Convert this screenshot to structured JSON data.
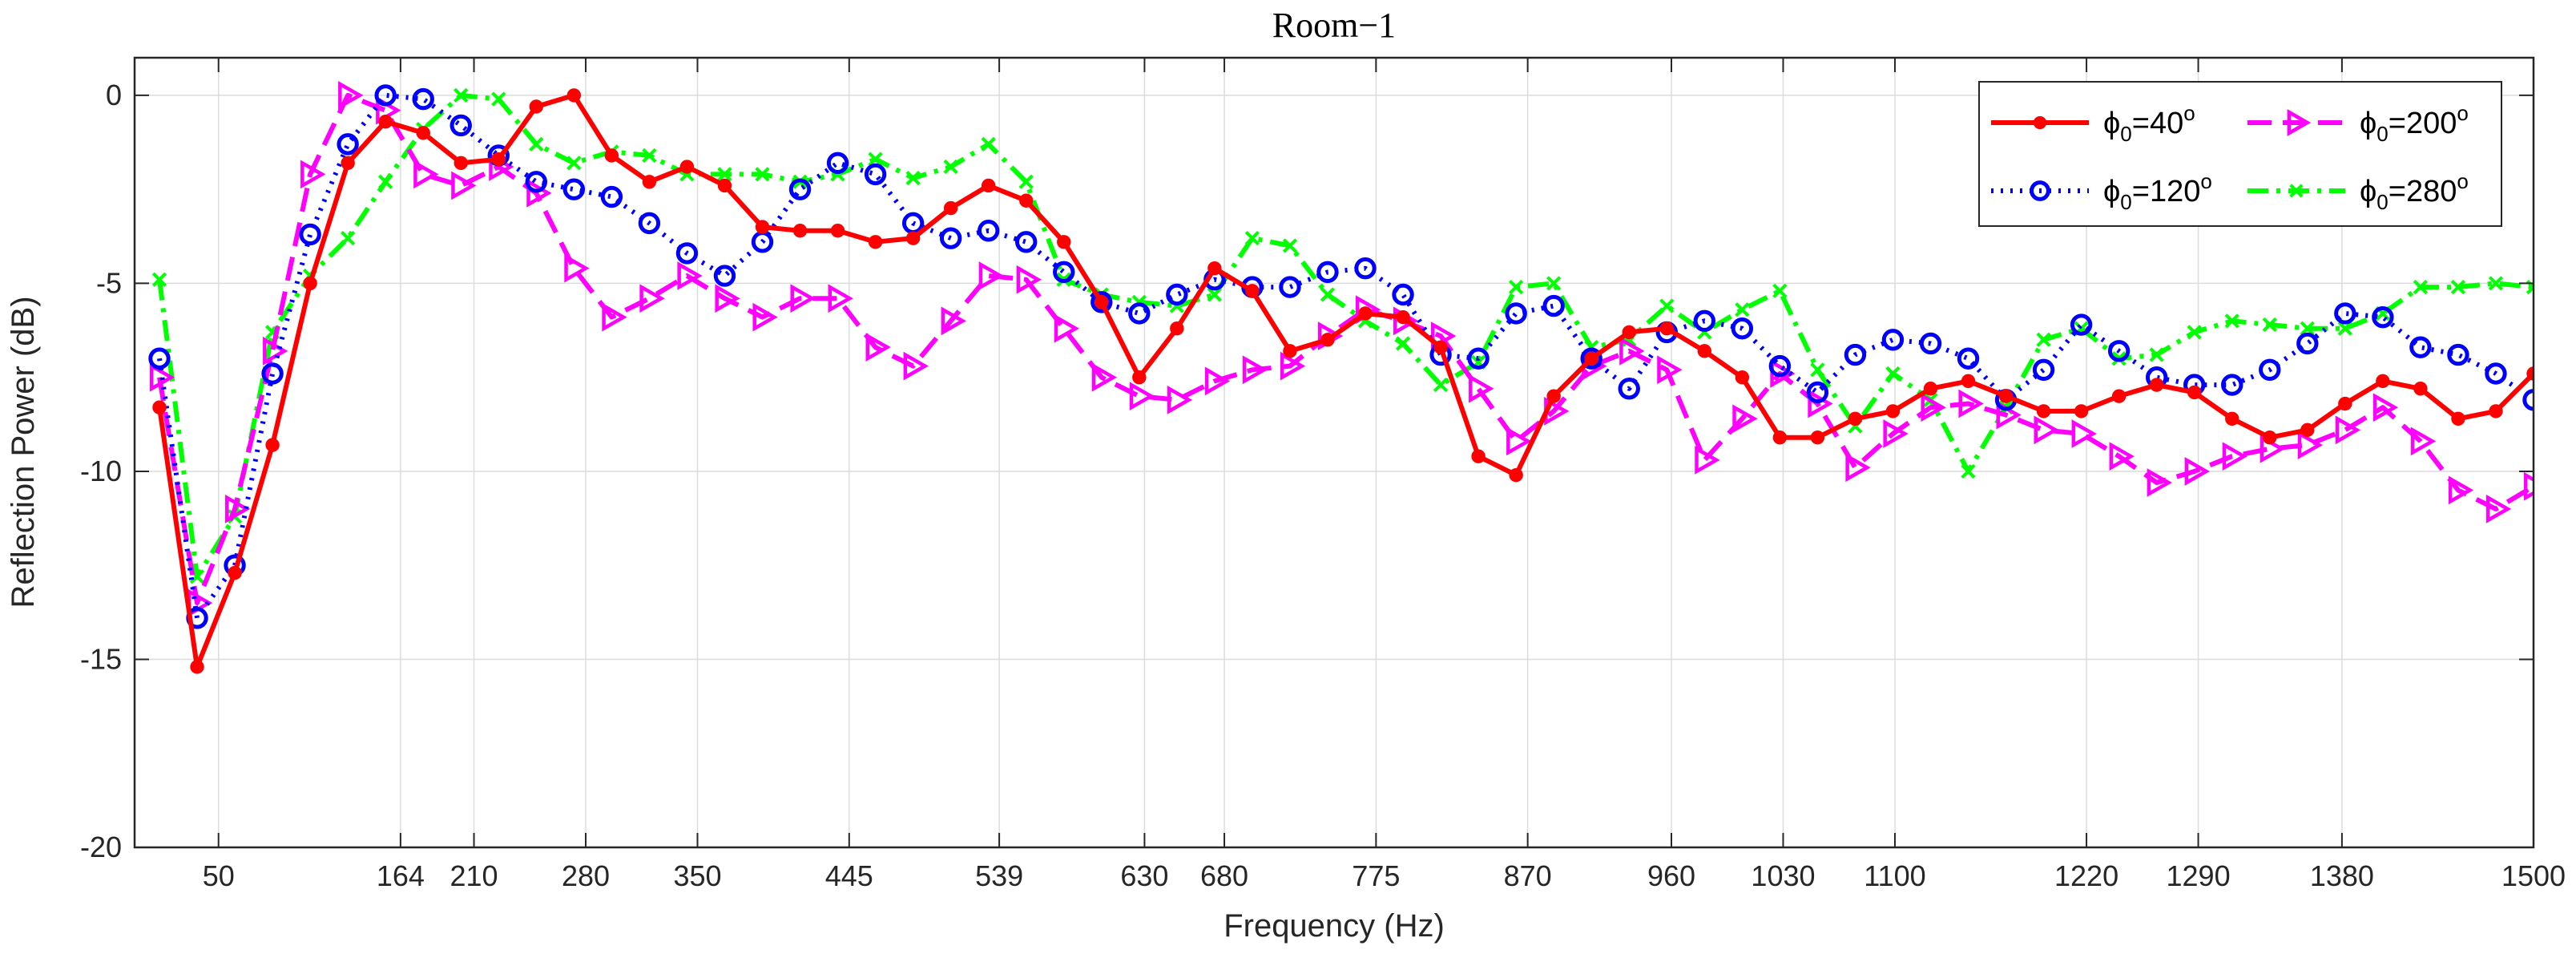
{
  "chart_data": {
    "type": "line",
    "title": "Room−1",
    "xlabel": "Frequency (Hz)",
    "ylabel": "Reflection Power (dB)",
    "ylim": [
      -20,
      1
    ],
    "yticks": [
      0,
      -5,
      -10,
      -15,
      -20
    ],
    "ytick_labels": [
      "0",
      "-5",
      "-10",
      "-15",
      "-20"
    ],
    "xtick_labels": [
      "50",
      "164",
      "210",
      "280",
      "350",
      "445",
      "539",
      "630",
      "680",
      "775",
      "870",
      "960",
      "1030",
      "1100",
      "1220",
      "1290",
      "1380",
      "1500"
    ],
    "grid": true,
    "legend_position": "top-right",
    "series": [
      {
        "name": "ϕ_0=40°",
        "label_base": "ϕ",
        "label_sub": "0",
        "label_value": "=40",
        "label_sup": "o",
        "color": "#ff0000",
        "line": "solid",
        "marker": "dot",
        "values": [
          -8.3,
          -15.2,
          -12.7,
          -9.3,
          -5,
          -1.8,
          -0.7,
          -1,
          -1.8,
          -1.7,
          -0.3,
          0,
          -1.6,
          -2.3,
          -1.9,
          -2.4,
          -3.5,
          -3.6,
          -3.6,
          -3.9,
          -3.8,
          -3,
          -2.4,
          -2.8,
          -3.9,
          -5.5,
          -7.5,
          -6.2,
          -4.6,
          -5.2,
          -6.8,
          -6.5,
          -5.8,
          -5.9,
          -6.7,
          -9.6,
          -10.1,
          -8,
          -7,
          -6.3,
          -6.2,
          -6.8,
          -7.5,
          -9.1,
          -9.1,
          -8.6,
          -8.4,
          -7.8,
          -7.6,
          -8,
          -8.4,
          -8.4,
          -8,
          -7.7,
          -7.9,
          -8.6,
          -9.1,
          -8.9,
          -8.2,
          -7.6,
          -7.8,
          -8.6,
          -8.4,
          -7.4
        ]
      },
      {
        "name": "ϕ_0=120°",
        "label_base": "ϕ",
        "label_sub": "0",
        "label_value": "=120",
        "label_sup": "o",
        "color": "#0000ff",
        "line": "dotted",
        "marker": "circle",
        "values": [
          -7,
          -13.9,
          -12.5,
          -7.4,
          -3.7,
          -1.3,
          0,
          -0.1,
          -0.8,
          -1.6,
          -2.3,
          -2.5,
          -2.7,
          -3.4,
          -4.2,
          -4.8,
          -3.9,
          -2.5,
          -1.8,
          -2.1,
          -3.4,
          -3.8,
          -3.6,
          -3.9,
          -4.7,
          -5.5,
          -5.8,
          -5.3,
          -4.9,
          -5.1,
          -5.1,
          -4.7,
          -4.6,
          -5.3,
          -6.9,
          -7,
          -5.8,
          -5.6,
          -7,
          -7.8,
          -6.3,
          -6,
          -6.2,
          -7.2,
          -7.9,
          -6.9,
          -6.5,
          -6.6,
          -7,
          -8.1,
          -7.3,
          -6.1,
          -6.8,
          -7.5,
          -7.7,
          -7.7,
          -7.3,
          -6.6,
          -5.8,
          -5.9,
          -6.7,
          -6.9,
          -7.4,
          -8.1
        ]
      },
      {
        "name": "ϕ_0=200°",
        "label_base": "ϕ",
        "label_sub": "0",
        "label_value": "=200",
        "label_sup": "o",
        "color": "#ff00ff",
        "line": "dashed",
        "marker": "triangle-right",
        "values": [
          -7.5,
          -13.5,
          -11,
          -6.8,
          -2.1,
          0,
          -0.4,
          -2.1,
          -2.4,
          -1.9,
          -2.6,
          -4.6,
          -5.9,
          -5.4,
          -4.8,
          -5.4,
          -5.9,
          -5.4,
          -5.4,
          -6.7,
          -7.2,
          -6,
          -4.8,
          -4.9,
          -6.2,
          -7.5,
          -8,
          -8.1,
          -7.6,
          -7.3,
          -7.2,
          -6.4,
          -5.7,
          -6,
          -6.4,
          -7.8,
          -9.2,
          -8.4,
          -7.2,
          -6.8,
          -7.3,
          -9.7,
          -8.6,
          -7.4,
          -8.2,
          -9.9,
          -9,
          -8.3,
          -8.2,
          -8.5,
          -8.9,
          -9,
          -9.6,
          -10.3,
          -10,
          -9.6,
          -9.4,
          -9.3,
          -8.9,
          -8.3,
          -9.2,
          -10.5,
          -11,
          -10.4
        ]
      },
      {
        "name": "ϕ_0=280°",
        "label_base": "ϕ",
        "label_sub": "0",
        "label_value": "=280",
        "label_sup": "o",
        "color": "#00ff00",
        "line": "dash-dot",
        "marker": "x",
        "values": [
          -4.9,
          -12.8,
          -11.2,
          -6.3,
          -4.8,
          -3.8,
          -2.3,
          -0.9,
          0,
          -0.1,
          -1.3,
          -1.8,
          -1.5,
          -1.6,
          -2.1,
          -2.1,
          -2.1,
          -2.3,
          -2.1,
          -1.7,
          -2.2,
          -1.9,
          -1.3,
          -2.3,
          -4.9,
          -5.3,
          -5.5,
          -5.6,
          -5.3,
          -3.8,
          -4,
          -5.3,
          -6,
          -6.6,
          -7.7,
          -7.1,
          -5.1,
          -5,
          -6.7,
          -6.5,
          -5.6,
          -6.3,
          -5.7,
          -5.2,
          -7.3,
          -8.8,
          -7.4,
          -8.1,
          -10,
          -8.3,
          -6.5,
          -6.2,
          -7,
          -6.9,
          -6.3,
          -6,
          -6.1,
          -6.2,
          -6.2,
          -5.8,
          -5.1,
          -5.1,
          -5,
          -5.1
        ]
      }
    ]
  }
}
